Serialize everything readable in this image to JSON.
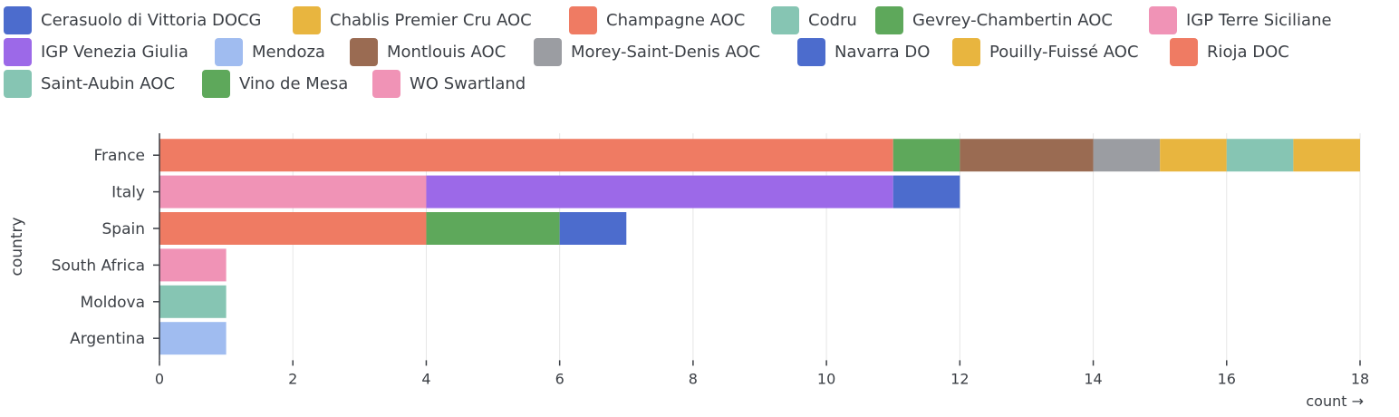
{
  "chart_data": {
    "type": "bar",
    "orientation": "horizontal",
    "stacked": true,
    "xlabel": "count →",
    "ylabel": "country",
    "xlim": [
      0,
      18
    ],
    "xticks": [
      0,
      2,
      4,
      6,
      8,
      10,
      12,
      14,
      16,
      18
    ],
    "grid": true,
    "legend_position": "top",
    "categories": [
      "France",
      "Italy",
      "Spain",
      "South Africa",
      "Moldova",
      "Argentina"
    ],
    "series": [
      {
        "name": "Cerasuolo di Vittoria DOCG",
        "color": "#4c6ccd",
        "values": [
          0,
          1,
          0,
          0,
          0,
          0
        ]
      },
      {
        "name": "Chablis Premier Cru AOC",
        "color": "#e8b53f",
        "values": [
          1,
          0,
          0,
          0,
          0,
          0
        ]
      },
      {
        "name": "Champagne AOC",
        "color": "#ef7b63",
        "values": [
          11,
          0,
          0,
          0,
          0,
          0
        ]
      },
      {
        "name": "Codru",
        "color": "#86c5b3",
        "values": [
          0,
          0,
          0,
          0,
          1,
          0
        ]
      },
      {
        "name": "Gevrey-Chambertin AOC",
        "color": "#5ea85b",
        "values": [
          1,
          0,
          0,
          0,
          0,
          0
        ]
      },
      {
        "name": "IGP Terre Siciliane",
        "color": "#f093b6",
        "values": [
          0,
          4,
          0,
          0,
          0,
          0
        ]
      },
      {
        "name": "IGP Venezia Giulia",
        "color": "#9c69e8",
        "values": [
          0,
          7,
          0,
          0,
          0,
          0
        ]
      },
      {
        "name": "Mendoza",
        "color": "#a0bcf0",
        "values": [
          0,
          0,
          0,
          0,
          0,
          1
        ]
      },
      {
        "name": "Montlouis AOC",
        "color": "#9a6b52",
        "values": [
          2,
          0,
          0,
          0,
          0,
          0
        ]
      },
      {
        "name": "Morey-Saint-Denis AOC",
        "color": "#9b9da2",
        "values": [
          1,
          0,
          0,
          0,
          0,
          0
        ]
      },
      {
        "name": "Navarra DO",
        "color": "#4c6ccd",
        "values": [
          0,
          0,
          1,
          0,
          0,
          0
        ]
      },
      {
        "name": "Pouilly-Fuissé AOC",
        "color": "#e8b53f",
        "values": [
          1,
          0,
          0,
          0,
          0,
          0
        ]
      },
      {
        "name": "Rioja DOC",
        "color": "#ef7b63",
        "values": [
          0,
          0,
          4,
          0,
          0,
          0
        ]
      },
      {
        "name": "Saint-Aubin AOC",
        "color": "#86c5b3",
        "values": [
          1,
          0,
          0,
          0,
          0,
          0
        ]
      },
      {
        "name": "Vino de Mesa",
        "color": "#5ea85b",
        "values": [
          0,
          0,
          2,
          0,
          0,
          0
        ]
      },
      {
        "name": "WO Swartland",
        "color": "#f093b6",
        "values": [
          0,
          0,
          0,
          1,
          0,
          0
        ]
      }
    ],
    "stack_order": {
      "France": [
        "Champagne AOC",
        "Gevrey-Chambertin AOC",
        "Montlouis AOC",
        "Morey-Saint-Denis AOC",
        "Pouilly-Fuissé AOC",
        "Saint-Aubin AOC",
        "Chablis Premier Cru AOC"
      ],
      "Italy": [
        "IGP Terre Siciliane",
        "IGP Venezia Giulia",
        "Cerasuolo di Vittoria DOCG"
      ],
      "Spain": [
        "Rioja DOC",
        "Vino de Mesa",
        "Navarra DO"
      ],
      "South Africa": [
        "WO Swartland"
      ],
      "Moldova": [
        "Codru"
      ],
      "Argentina": [
        "Mendoza"
      ]
    }
  }
}
